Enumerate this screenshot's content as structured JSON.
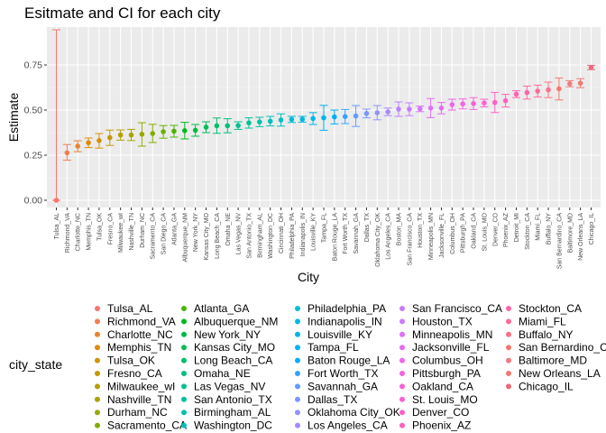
{
  "chart_data": {
    "type": "scatter",
    "title": "Esitmate and CI for each city",
    "xlabel": "City",
    "ylabel": "Estimate",
    "ylim": [
      -0.04,
      0.96
    ],
    "y_ticks": [
      0.0,
      0.25,
      0.5,
      0.75
    ],
    "y_tick_labels": [
      "0.00",
      "0.25",
      "0.50",
      "0.75"
    ],
    "grid": true,
    "error_bars": true,
    "legend_title": "city_state",
    "legend_position": "bottom",
    "categories": [
      "Tulsa_AL",
      "Richmond_VA",
      "Charlotte_NC",
      "Memphis_TN",
      "Tulsa_OK",
      "Fresno_CA",
      "Milwaukee_wI",
      "Nashville_TN",
      "Durham_NC",
      "Sacramento_CA",
      "San Diego_CA",
      "Atlanta_GA",
      "Albuquerque_NM",
      "New York_NY",
      "Kansas City_MO",
      "Long Beach_CA",
      "Omaha_NE",
      "Las Vegas_NV",
      "San Antonio_TX",
      "Birmingham_AL",
      "Washington_DC",
      "Cincinnati_OH",
      "Philadelphia_PA",
      "Indianapolis_IN",
      "Louisville_KY",
      "Tampa_FL",
      "Baton Rouge_LA",
      "Fort Worth_TX",
      "Savannah_GA",
      "Dallas_TX",
      "Oklahoma City_OK",
      "Los Angeles_CA",
      "Boston_MA",
      "San Francisco_CA",
      "Houston_TX",
      "Minneapolis_MN",
      "Jacksonville_FL",
      "Columbus_OH",
      "Pittsburgh_PA",
      "Oakland_CA",
      "St. Louis_MO",
      "Denver_CO",
      "Phoenix_AZ",
      "Detroit_MI",
      "Stockton_CA",
      "Miami_FL",
      "Buffalo_NY",
      "San Bernardino_CA",
      "Baltimore_MD",
      "New Orleans_LA",
      "Chicago_IL"
    ],
    "estimate": [
      0.0,
      0.263,
      0.3,
      0.319,
      0.331,
      0.347,
      0.362,
      0.362,
      0.366,
      0.37,
      0.38,
      0.383,
      0.386,
      0.388,
      0.405,
      0.413,
      0.413,
      0.414,
      0.429,
      0.434,
      0.438,
      0.445,
      0.448,
      0.449,
      0.453,
      0.457,
      0.462,
      0.464,
      0.467,
      0.481,
      0.485,
      0.49,
      0.505,
      0.505,
      0.507,
      0.511,
      0.511,
      0.53,
      0.534,
      0.536,
      0.539,
      0.542,
      0.552,
      0.588,
      0.597,
      0.605,
      0.612,
      0.618,
      0.646,
      0.649,
      0.736
    ],
    "ci_low": [
      0.0,
      0.222,
      0.269,
      0.292,
      0.289,
      0.304,
      0.333,
      0.331,
      0.3,
      0.32,
      0.344,
      0.35,
      0.34,
      0.355,
      0.375,
      0.371,
      0.374,
      0.393,
      0.4,
      0.408,
      0.412,
      0.411,
      0.431,
      0.433,
      0.42,
      0.388,
      0.423,
      0.425,
      0.409,
      0.457,
      0.446,
      0.469,
      0.465,
      0.469,
      0.491,
      0.458,
      0.479,
      0.5,
      0.506,
      0.503,
      0.518,
      0.486,
      0.517,
      0.569,
      0.561,
      0.572,
      0.569,
      0.556,
      0.629,
      0.624,
      0.724
    ],
    "ci_high": [
      0.945,
      0.309,
      0.33,
      0.345,
      0.37,
      0.389,
      0.39,
      0.393,
      0.43,
      0.421,
      0.414,
      0.415,
      0.432,
      0.42,
      0.435,
      0.456,
      0.452,
      0.435,
      0.457,
      0.46,
      0.465,
      0.479,
      0.465,
      0.465,
      0.486,
      0.526,
      0.5,
      0.503,
      0.525,
      0.505,
      0.525,
      0.511,
      0.545,
      0.54,
      0.522,
      0.564,
      0.542,
      0.56,
      0.562,
      0.569,
      0.56,
      0.598,
      0.587,
      0.607,
      0.633,
      0.638,
      0.655,
      0.678,
      0.663,
      0.674,
      0.748
    ],
    "colors": [
      "#F8766D",
      "#F27D52",
      "#EA8331",
      "#E08B00",
      "#D49200",
      "#C79800",
      "#B89F00",
      "#A8A400",
      "#96A900",
      "#81AD00",
      "#69B100",
      "#49B500",
      "#00B81F",
      "#00BA42",
      "#00BC59",
      "#00BE6C",
      "#00BF7C",
      "#00C08D",
      "#00C19C",
      "#00C1AA",
      "#00C0B8",
      "#00BFC4",
      "#00BDD1",
      "#00BADC",
      "#00B6E7",
      "#00B2F1",
      "#00ADFA",
      "#35A2FF",
      "#619CFF",
      "#7E96FF",
      "#9590FF",
      "#A889FF",
      "#B983FF",
      "#C77CFF",
      "#D376FF",
      "#DE70F9",
      "#E76BF3",
      "#EE67EB",
      "#F564E3",
      "#FA62DA",
      "#FD61D0",
      "#FF61C6",
      "#FF62BC",
      "#FF64B0",
      "#FF67A4",
      "#FF6C97",
      "#FC718A",
      "#F8766D",
      "#F27A7E",
      "#EF7B72",
      "#EC6A79"
    ],
    "legend_columns": 6,
    "legend_rows": 11
  }
}
